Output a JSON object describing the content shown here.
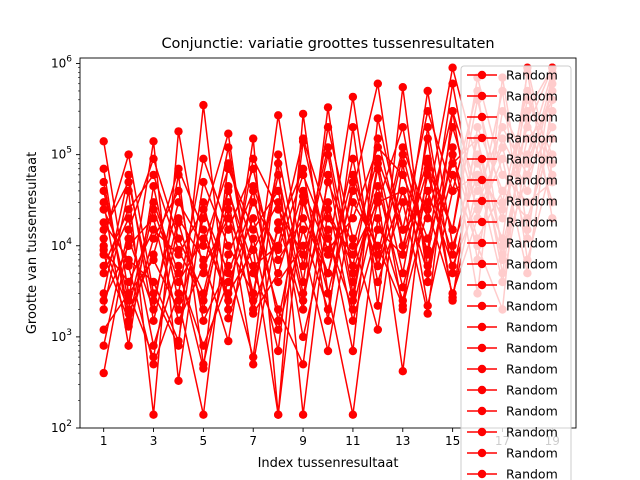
{
  "chart_data": {
    "type": "line",
    "title": "Conjunctie: variatie groottes tussenresultaten",
    "xlabel": "Index tussenresultaat",
    "ylabel": "Grootte van tussenresultaat",
    "xlim": [
      0.05,
      19.95
    ],
    "ylim": [
      100,
      1150000
    ],
    "yscale": "log",
    "x_ticks": [
      1,
      3,
      5,
      7,
      9,
      11,
      13,
      15,
      17,
      19
    ],
    "y_ticks": [
      {
        "value": 100,
        "base": "10",
        "exp": "2"
      },
      {
        "value": 1000,
        "base": "10",
        "exp": "3"
      },
      {
        "value": 10000,
        "base": "10",
        "exp": "4"
      },
      {
        "value": 100000,
        "base": "10",
        "exp": "5"
      },
      {
        "value": 1000000,
        "base": "10",
        "exp": "6"
      }
    ],
    "series_color": "#ff0000",
    "marker": "circle",
    "legend_placement": "right",
    "legend_entries": [
      "Random",
      "Random",
      "Random",
      "Random",
      "Random",
      "Random",
      "Random",
      "Random",
      "Random",
      "Random",
      "Random",
      "Random",
      "Random",
      "Random",
      "Random",
      "Random",
      "Random",
      "Random",
      "Random",
      "Random"
    ],
    "series": [
      {
        "name": "Random",
        "x": [
          1,
          2,
          3,
          4,
          5,
          6,
          7,
          8,
          9,
          10,
          11,
          12,
          13,
          14,
          15,
          16,
          17,
          18,
          19
        ],
        "y": [
          8000,
          1500,
          25000,
          4000,
          12000,
          3000,
          9000,
          140,
          30000,
          5000,
          60000,
          8000,
          120000,
          20000,
          300000,
          40000,
          200000,
          60000,
          700000
        ]
      },
      {
        "name": "Random",
        "x": [
          1,
          2,
          3,
          4,
          5,
          6,
          7,
          8,
          9,
          10,
          11,
          12,
          13,
          14,
          15,
          16,
          17,
          18,
          19
        ],
        "y": [
          140000,
          3000,
          600,
          18000,
          2000,
          45000,
          3000,
          80000,
          140,
          25000,
          6000,
          150000,
          10000,
          90000,
          15000,
          400000,
          30000,
          500000,
          50000
        ]
      },
      {
        "name": "Random",
        "x": [
          1,
          2,
          3,
          4,
          5,
          6,
          7,
          8,
          9,
          10,
          11,
          12,
          13,
          14,
          15,
          16,
          17,
          18,
          19
        ],
        "y": [
          400,
          12000,
          2000,
          60000,
          500,
          8000,
          40000,
          1500,
          35000,
          3000,
          140,
          20000,
          2500,
          60000,
          8000,
          150000,
          5000,
          300000,
          900000
        ]
      },
      {
        "name": "Random",
        "x": [
          1,
          2,
          3,
          4,
          5,
          6,
          7,
          8,
          9,
          10,
          11,
          12,
          13,
          14,
          15,
          16,
          17,
          18,
          19
        ],
        "y": [
          30000,
          800,
          45000,
          2500,
          140,
          25000,
          500,
          18000,
          2000,
          330000,
          4000,
          35000,
          420,
          80000,
          2700,
          50000,
          12000,
          800000,
          20000
        ]
      },
      {
        "name": "Random",
        "x": [
          1,
          2,
          3,
          4,
          5,
          6,
          7,
          8,
          9,
          10,
          11,
          12,
          13,
          14,
          15,
          16,
          17,
          18,
          19
        ],
        "y": [
          12000,
          100000,
          3000,
          800,
          350000,
          1600,
          12000,
          700,
          140000,
          8000,
          430000,
          6000,
          40000,
          9000,
          600000,
          20000,
          150000,
          40000,
          600000
        ]
      },
      {
        "name": "Random",
        "x": [
          1,
          2,
          3,
          4,
          5,
          6,
          7,
          8,
          9,
          10,
          11,
          12,
          13,
          14,
          15,
          16,
          17,
          18,
          19
        ],
        "y": [
          2000,
          40000,
          140,
          180000,
          5000,
          120000,
          2500,
          270000,
          6000,
          100000,
          3000,
          70000,
          2000,
          200000,
          5000,
          100000,
          7000,
          250000,
          30000
        ]
      },
      {
        "name": "Random",
        "x": [
          1,
          2,
          3,
          4,
          5,
          6,
          7,
          8,
          9,
          10,
          11,
          12,
          13,
          14,
          15,
          16,
          17,
          18,
          19
        ],
        "y": [
          40000,
          2500,
          140000,
          330,
          30000,
          2000,
          150000,
          140,
          280000,
          3000,
          40000,
          600000,
          8000,
          500000,
          10000,
          60000,
          4000,
          100000,
          800000
        ]
      },
      {
        "name": "Random",
        "x": [
          1,
          2,
          3,
          4,
          5,
          6,
          7,
          8,
          9,
          10,
          11,
          12,
          13,
          14,
          15,
          16,
          17,
          18,
          19
        ],
        "y": [
          5000,
          20000,
          800,
          6000,
          450,
          80000,
          9000,
          30000,
          1000,
          15000,
          700,
          250000,
          15000,
          30000,
          900000,
          80000,
          20000,
          400000,
          100000
        ]
      },
      {
        "name": "Random",
        "x": [
          1,
          2,
          3,
          4,
          5,
          6,
          7,
          8,
          9,
          10,
          11,
          12,
          13,
          14,
          15,
          16,
          17,
          18,
          19
        ],
        "y": [
          1200,
          3000,
          7000,
          2000,
          20000,
          170000,
          2000,
          15000,
          70000,
          1500,
          200000,
          2200,
          550000,
          4000,
          120000,
          3000,
          700000,
          15000,
          300000
        ]
      },
      {
        "name": "Random",
        "x": [
          1,
          2,
          3,
          4,
          5,
          6,
          7,
          8,
          9,
          10,
          11,
          12,
          13,
          14,
          15,
          16,
          17,
          18,
          19
        ],
        "y": [
          70000,
          1300,
          12000,
          40000,
          1500,
          6000,
          600,
          100000,
          4000,
          200000,
          12000,
          1200,
          80000,
          2200,
          40000,
          500000,
          8000,
          60000,
          200000
        ]
      },
      {
        "name": "Random",
        "x": [
          1,
          2,
          3,
          4,
          5,
          6,
          7,
          8,
          9,
          10,
          11,
          12,
          13,
          14,
          15,
          16,
          17,
          18,
          19
        ],
        "y": [
          25000,
          6000,
          500,
          3000,
          90000,
          15000,
          70000,
          4000,
          10000,
          700,
          30000,
          10000,
          2200,
          25000,
          3000,
          20000,
          90000,
          5000,
          400000
        ]
      },
      {
        "name": "Random",
        "x": [
          1,
          2,
          3,
          4,
          5,
          6,
          7,
          8,
          9,
          10,
          11,
          12,
          13,
          14,
          15,
          16,
          17,
          18,
          19
        ],
        "y": [
          800,
          15000,
          90000,
          12000,
          3000,
          40000,
          6000,
          10000,
          150000,
          20000,
          8000,
          30000,
          200000,
          6000,
          60000,
          10000,
          2000,
          900000,
          60000
        ]
      },
      {
        "name": "Random",
        "x": [
          1,
          2,
          3,
          4,
          5,
          6,
          7,
          8,
          9,
          10,
          11,
          12,
          13,
          14,
          15,
          16,
          17,
          18,
          19
        ],
        "y": [
          10000,
          2000,
          30000,
          5000,
          800,
          4000,
          20000,
          2000,
          500,
          60000,
          2500,
          80000,
          5000,
          150000,
          2500,
          200000,
          40000,
          20000,
          150000
        ]
      },
      {
        "name": "Random",
        "x": [
          1,
          2,
          3,
          4,
          5,
          6,
          7,
          8,
          9,
          10,
          11,
          12,
          13,
          14,
          15,
          16,
          17,
          18,
          19
        ],
        "y": [
          3000,
          60000,
          1500,
          20000,
          7000,
          900,
          45000,
          7000,
          20000,
          5000,
          90000,
          4000,
          30000,
          1800,
          300000,
          7000,
          300000,
          80000,
          500000
        ]
      },
      {
        "name": "Random",
        "x": [
          1,
          2,
          3,
          4,
          5,
          6,
          7,
          8,
          9,
          10,
          11,
          12,
          13,
          14,
          15,
          16,
          17,
          18,
          19
        ],
        "y": [
          18000,
          7000,
          4000,
          900,
          50000,
          10000,
          3000,
          60000,
          3000,
          30000,
          1500,
          15000,
          8000,
          70000,
          15000,
          700000,
          60000,
          30000,
          50000
        ]
      },
      {
        "name": "Random",
        "x": [
          1,
          2,
          3,
          4,
          5,
          6,
          7,
          8,
          9,
          10,
          11,
          12,
          13,
          14,
          15,
          16,
          17,
          18,
          19
        ],
        "y": [
          6000,
          25000,
          60000,
          9000,
          2500,
          30000,
          1800,
          5000,
          40000,
          9000,
          20000,
          120000,
          60000,
          12000,
          80000,
          150000,
          10000,
          150000,
          300000
        ]
      },
      {
        "name": "Random",
        "x": [
          1,
          2,
          3,
          4,
          5,
          6,
          7,
          8,
          9,
          10,
          11,
          12,
          13,
          14,
          15,
          16,
          17,
          18,
          19
        ],
        "y": [
          50000,
          1800,
          8000,
          70000,
          15000,
          2500,
          90000,
          25000,
          8000,
          120000,
          5000,
          45000,
          3500,
          40000,
          6000,
          30000,
          120000,
          12000,
          700000
        ]
      },
      {
        "name": "Random",
        "x": [
          1,
          2,
          3,
          4,
          5,
          6,
          7,
          8,
          9,
          10,
          11,
          12,
          13,
          14,
          15,
          16,
          17,
          18,
          19
        ],
        "y": [
          2500,
          10000,
          20000,
          1500,
          6000,
          20000,
          5000,
          1200,
          15000,
          2000,
          50000,
          6000,
          100000,
          8000,
          200000,
          25000,
          500000,
          7000,
          80000
        ]
      },
      {
        "name": "Random",
        "x": [
          1,
          2,
          3,
          4,
          5,
          6,
          7,
          8,
          9,
          10,
          11,
          12,
          13,
          14,
          15,
          16,
          17,
          18,
          19
        ],
        "y": [
          15000,
          50000,
          2500,
          30000,
          10000,
          70000,
          15000,
          40000,
          2500,
          50000,
          10000,
          90000,
          15000,
          300000,
          40000,
          60000,
          25000,
          200000,
          900000
        ]
      },
      {
        "name": "Random",
        "x": [
          1,
          2,
          3,
          4,
          5,
          6,
          7,
          8,
          9,
          10,
          11,
          12,
          13,
          14,
          15,
          16,
          17,
          18,
          19
        ],
        "y": [
          9000,
          4000,
          15000,
          8000,
          25000,
          5000,
          30000,
          9000,
          60000,
          12000,
          2000,
          30000,
          40000,
          5000,
          100000,
          12000,
          40000,
          100000,
          400000
        ]
      }
    ]
  }
}
